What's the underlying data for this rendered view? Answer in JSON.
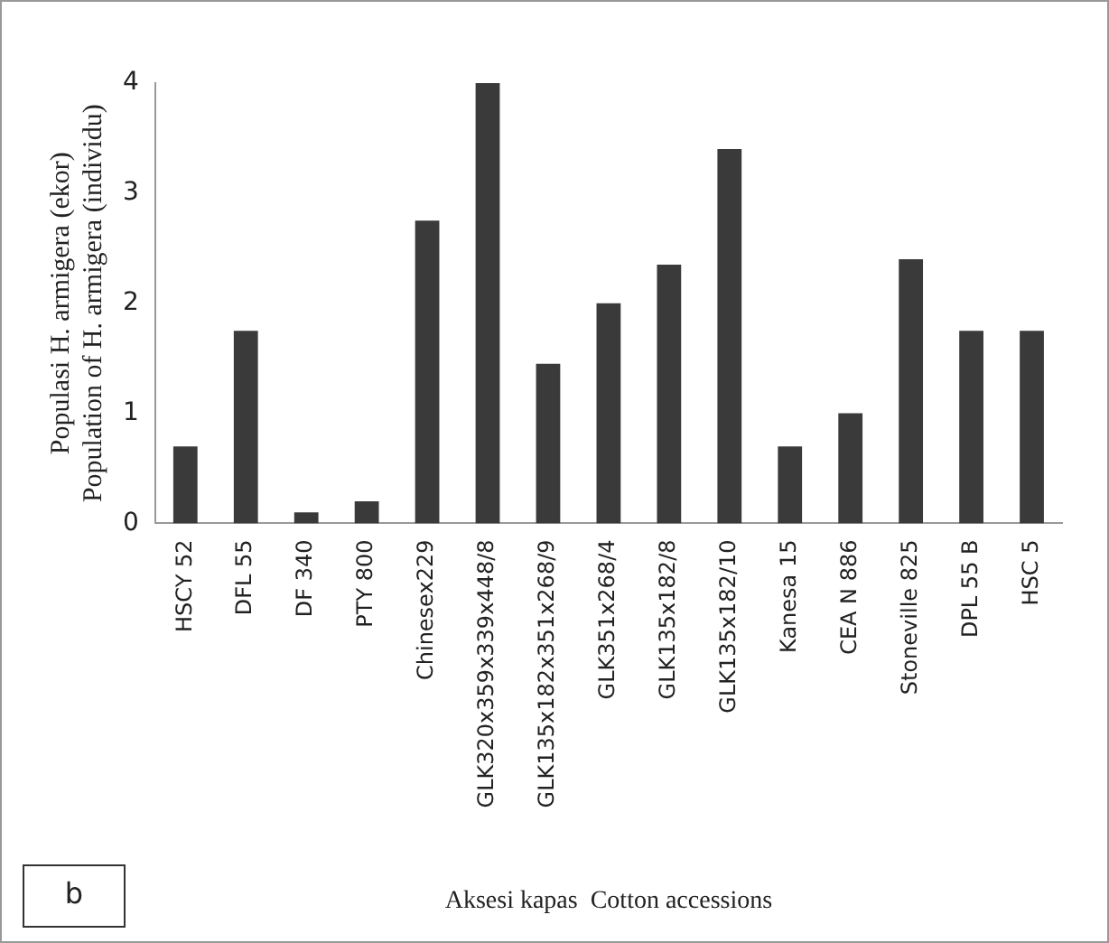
{
  "chart_data": {
    "type": "bar",
    "ylabel": "Populasi H. armigera (ekor)\nPopulation of H. armigera (individu)",
    "xlabel": "Aksesi kapas  Cotton accessions",
    "categories": [
      "HSCY 52",
      "DFL 55",
      "DF 340",
      "PTY 800",
      "Chinesex229",
      "GLK320x359x339x448/8",
      "GLK135x182x351x268/9",
      "GLK351x268/4",
      "GLK135x182/8",
      "GLK135x182/10",
      "Kanesa 15",
      "CEA N 886",
      "Stoneville 825",
      "DPL 55 B",
      "HSC 5"
    ],
    "values": [
      0.7,
      1.75,
      0.1,
      0.2,
      2.75,
      4.0,
      1.45,
      2.0,
      2.35,
      3.4,
      0.7,
      1.0,
      2.4,
      1.75,
      1.75
    ],
    "color": "#3a3a3a",
    "ylim": [
      0,
      4
    ],
    "yticks": [
      0,
      1,
      2,
      3,
      4
    ],
    "grid": false,
    "legend": false,
    "annotations": [
      "b"
    ]
  }
}
